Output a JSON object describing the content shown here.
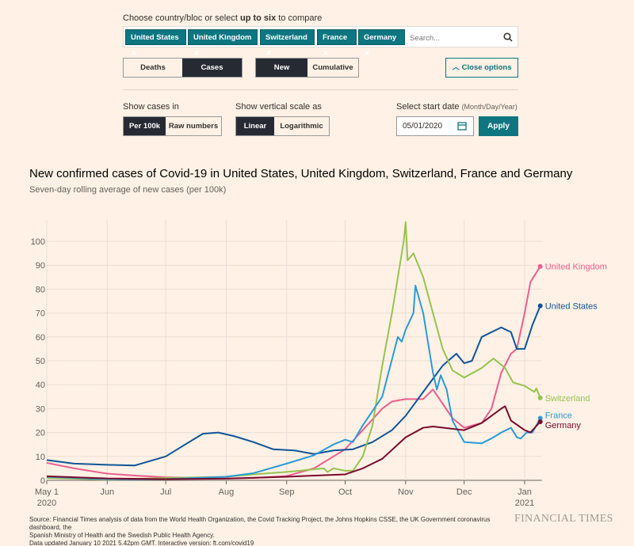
{
  "controls": {
    "choose_prefix": "Choose country/bloc or select ",
    "choose_bold": "up to six",
    "choose_suffix": " to compare",
    "tags": [
      "United States",
      "United Kingdom",
      "Switzerland",
      "France",
      "Germany"
    ],
    "search_placeholder": "Search...",
    "measure": [
      "Deaths",
      "Cases"
    ],
    "measure_selected": "Cases",
    "mode": [
      "New",
      "Cumulative"
    ],
    "mode_selected": "New",
    "close_options": "Close options",
    "show_in_label": "Show cases in",
    "show_in": [
      "Per 100k",
      "Raw numbers"
    ],
    "show_in_selected": "Per 100k",
    "scale_label": "Show vertical scale as",
    "scale": [
      "Linear",
      "Logarithmic"
    ],
    "scale_selected": "Linear",
    "date_label": "Select start date",
    "date_hint": "(Month/Day/Year)",
    "date_value": "05/01/2020",
    "apply": "Apply"
  },
  "chart_data": {
    "type": "line",
    "title": "New confirmed cases of Covid-19 in United States, United Kingdom, Switzerland, France and Germany",
    "subtitle": "Seven-day rolling average of new cases (per 100k)",
    "ylim": [
      0,
      110
    ],
    "yticks": [
      0,
      10,
      20,
      30,
      40,
      50,
      60,
      70,
      80,
      90,
      100
    ],
    "xlim": [
      "2020-05-01",
      "2021-01-09"
    ],
    "xticks": [
      {
        "date": "2020-05-01",
        "label": "May 1",
        "label2": "2020"
      },
      {
        "date": "2020-06-01",
        "label": "Jun"
      },
      {
        "date": "2020-07-01",
        "label": "Jul"
      },
      {
        "date": "2020-08-01",
        "label": "Aug"
      },
      {
        "date": "2020-09-01",
        "label": "Sep"
      },
      {
        "date": "2020-10-01",
        "label": "Oct"
      },
      {
        "date": "2020-11-01",
        "label": "Nov"
      },
      {
        "date": "2020-12-01",
        "label": "Dec"
      },
      {
        "date": "2021-01-01",
        "label": "Jan",
        "label2": "2021"
      }
    ],
    "grid": true,
    "legend": "end-of-line labels",
    "series": [
      {
        "name": "United Kingdom",
        "color": "#ec5e8f",
        "points": [
          [
            "2020-05-01",
            7.3
          ],
          [
            "2020-05-15",
            5
          ],
          [
            "2020-06-01",
            2.8
          ],
          [
            "2020-06-15",
            2
          ],
          [
            "2020-07-01",
            1.3
          ],
          [
            "2020-08-01",
            0.8
          ],
          [
            "2020-08-15",
            1
          ],
          [
            "2020-09-01",
            1.8
          ],
          [
            "2020-09-15",
            5
          ],
          [
            "2020-09-25",
            10
          ],
          [
            "2020-10-01",
            13
          ],
          [
            "2020-10-10",
            21
          ],
          [
            "2020-10-20",
            30
          ],
          [
            "2020-10-25",
            33
          ],
          [
            "2020-11-01",
            34
          ],
          [
            "2020-11-10",
            34
          ],
          [
            "2020-11-15",
            38
          ],
          [
            "2020-11-20",
            32
          ],
          [
            "2020-11-25",
            26
          ],
          [
            "2020-12-01",
            22
          ],
          [
            "2020-12-10",
            24
          ],
          [
            "2020-12-15",
            30
          ],
          [
            "2020-12-20",
            45
          ],
          [
            "2020-12-25",
            53
          ],
          [
            "2020-12-28",
            55
          ],
          [
            "2021-01-01",
            70
          ],
          [
            "2021-01-04",
            83
          ],
          [
            "2021-01-09",
            89.5
          ]
        ]
      },
      {
        "name": "United States",
        "color": "#0f5499",
        "points": [
          [
            "2020-05-01",
            8.5
          ],
          [
            "2020-05-15",
            7
          ],
          [
            "2020-06-01",
            6.5
          ],
          [
            "2020-06-15",
            6.2
          ],
          [
            "2020-07-01",
            10
          ],
          [
            "2020-07-10",
            14.5
          ],
          [
            "2020-07-20",
            19.5
          ],
          [
            "2020-07-28",
            20
          ],
          [
            "2020-08-05",
            18.5
          ],
          [
            "2020-08-15",
            16
          ],
          [
            "2020-08-25",
            13
          ],
          [
            "2020-09-05",
            12.5
          ],
          [
            "2020-09-15",
            11
          ],
          [
            "2020-09-25",
            12.5
          ],
          [
            "2020-10-05",
            13
          ],
          [
            "2020-10-15",
            16
          ],
          [
            "2020-10-25",
            21
          ],
          [
            "2020-11-01",
            27
          ],
          [
            "2020-11-10",
            37
          ],
          [
            "2020-11-20",
            48
          ],
          [
            "2020-11-27",
            53
          ],
          [
            "2020-12-01",
            49
          ],
          [
            "2020-12-05",
            50
          ],
          [
            "2020-12-10",
            60
          ],
          [
            "2020-12-20",
            64
          ],
          [
            "2020-12-25",
            62
          ],
          [
            "2020-12-28",
            55
          ],
          [
            "2021-01-01",
            55
          ],
          [
            "2021-01-05",
            65
          ],
          [
            "2021-01-09",
            73
          ]
        ]
      },
      {
        "name": "Switzerland",
        "color": "#96c350",
        "points": [
          [
            "2020-05-01",
            1
          ],
          [
            "2020-06-01",
            0.3
          ],
          [
            "2020-07-01",
            1
          ],
          [
            "2020-08-01",
            1.5
          ],
          [
            "2020-08-15",
            2.5
          ],
          [
            "2020-09-01",
            3.5
          ],
          [
            "2020-09-20",
            5
          ],
          [
            "2020-09-22",
            3.5
          ],
          [
            "2020-09-25",
            5
          ],
          [
            "2020-10-01",
            4
          ],
          [
            "2020-10-05",
            4
          ],
          [
            "2020-10-10",
            10
          ],
          [
            "2020-10-15",
            23
          ],
          [
            "2020-10-20",
            48
          ],
          [
            "2020-10-25",
            70
          ],
          [
            "2020-10-31",
            100
          ],
          [
            "2020-11-01",
            108
          ],
          [
            "2020-11-02",
            92
          ],
          [
            "2020-11-05",
            95
          ],
          [
            "2020-11-10",
            85
          ],
          [
            "2020-11-15",
            70
          ],
          [
            "2020-11-20",
            55
          ],
          [
            "2020-11-25",
            46
          ],
          [
            "2020-12-01",
            43
          ],
          [
            "2020-12-10",
            47
          ],
          [
            "2020-12-16",
            51
          ],
          [
            "2020-12-22",
            47
          ],
          [
            "2020-12-26",
            41
          ],
          [
            "2021-01-01",
            39.5
          ],
          [
            "2021-01-06",
            37
          ],
          [
            "2021-01-07",
            38.5
          ],
          [
            "2021-01-09",
            34.5
          ]
        ]
      },
      {
        "name": "France",
        "color": "#2a9ad8",
        "points": [
          [
            "2020-05-01",
            1.5
          ],
          [
            "2020-06-01",
            0.5
          ],
          [
            "2020-07-01",
            0.5
          ],
          [
            "2020-08-01",
            1.5
          ],
          [
            "2020-08-15",
            3
          ],
          [
            "2020-09-01",
            7
          ],
          [
            "2020-09-15",
            10.5
          ],
          [
            "2020-09-25",
            15
          ],
          [
            "2020-10-01",
            17
          ],
          [
            "2020-10-05",
            16
          ],
          [
            "2020-10-10",
            23
          ],
          [
            "2020-10-20",
            35
          ],
          [
            "2020-10-28",
            60
          ],
          [
            "2020-10-30",
            58
          ],
          [
            "2020-11-01",
            63
          ],
          [
            "2020-11-05",
            70
          ],
          [
            "2020-11-06",
            81.5
          ],
          [
            "2020-11-10",
            70
          ],
          [
            "2020-11-15",
            45
          ],
          [
            "2020-11-17",
            38
          ],
          [
            "2020-11-19",
            44
          ],
          [
            "2020-11-22",
            38
          ],
          [
            "2020-11-25",
            25
          ],
          [
            "2020-12-01",
            16
          ],
          [
            "2020-12-10",
            15.5
          ],
          [
            "2020-12-15",
            17.5
          ],
          [
            "2020-12-20",
            20
          ],
          [
            "2020-12-25",
            22
          ],
          [
            "2020-12-28",
            18
          ],
          [
            "2020-12-30",
            17.5
          ],
          [
            "2021-01-02",
            20
          ],
          [
            "2021-01-05",
            20
          ],
          [
            "2021-01-09",
            26
          ]
        ]
      },
      {
        "name": "Germany",
        "color": "#7a0b2d",
        "points": [
          [
            "2020-05-01",
            1.7
          ],
          [
            "2020-06-01",
            0.8
          ],
          [
            "2020-07-01",
            0.5
          ],
          [
            "2020-08-01",
            0.7
          ],
          [
            "2020-09-01",
            1.5
          ],
          [
            "2020-10-01",
            2.5
          ],
          [
            "2020-10-10",
            5
          ],
          [
            "2020-10-20",
            9
          ],
          [
            "2020-11-01",
            18
          ],
          [
            "2020-11-10",
            22
          ],
          [
            "2020-11-15",
            22.5
          ],
          [
            "2020-12-01",
            21
          ],
          [
            "2020-12-10",
            24
          ],
          [
            "2020-12-20",
            30
          ],
          [
            "2020-12-22",
            31
          ],
          [
            "2020-12-25",
            25
          ],
          [
            "2021-01-01",
            21
          ],
          [
            "2021-01-04",
            20
          ],
          [
            "2021-01-09",
            24.5
          ]
        ]
      }
    ]
  },
  "footer": {
    "source1": "Source: Financial Times analysis of data from the World Health Organization, the Covid Tracking Project, the Johns Hopkins CSSE, the UK Government coronavirus dashboard, the",
    "source2": "Spanish Ministry of Health and the Swedish Public Health Agency.",
    "source3": "Data updated January 10 2021 5.42pm GMT. Interactive version: ft.com/covid19",
    "logo": "FINANCIAL TIMES"
  }
}
